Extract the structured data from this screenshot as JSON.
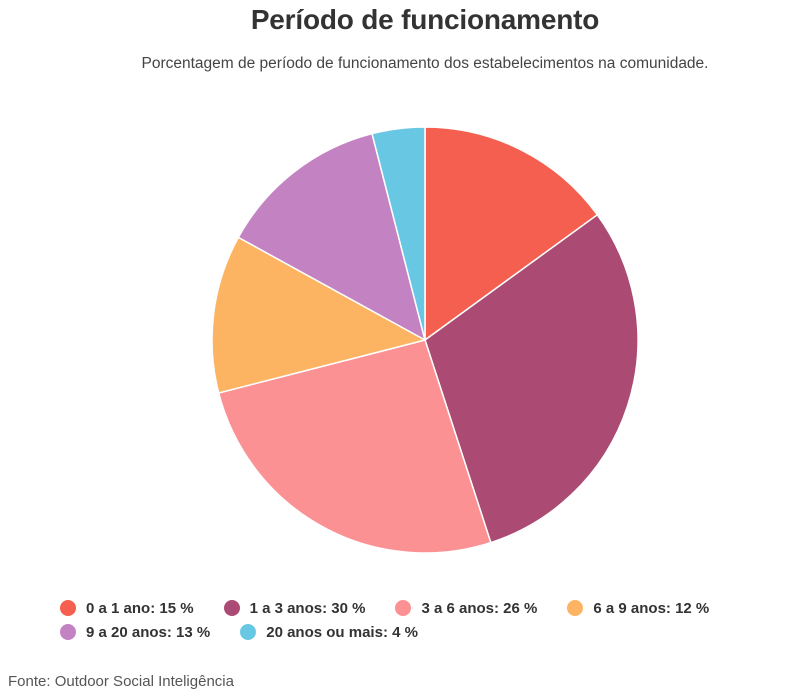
{
  "chart_data": {
    "type": "pie",
    "title": "Período de funcionamento",
    "subtitle": "Porcentagem de período de funcionamento dos estabelecimentos na comunidade.",
    "unit": "%",
    "legend_position": "bottom",
    "slices": [
      {
        "label": "0 a 1 ano",
        "value": 15,
        "legend": "0 a 1 ano: 15 %",
        "color": "#f45f4f"
      },
      {
        "label": "1 a 3 anos",
        "value": 30,
        "legend": "1 a 3 anos: 30 %",
        "color": "#ab4b73"
      },
      {
        "label": "3 a 6 anos",
        "value": 26,
        "legend": "3 a 6 anos: 26 %",
        "color": "#fb9193"
      },
      {
        "label": "6 a 9 anos",
        "value": 12,
        "legend": "6 a 9 anos: 12 %",
        "color": "#fdb462"
      },
      {
        "label": "9 a 20 anos",
        "value": 13,
        "legend": "9 a 20 anos: 13 %",
        "color": "#c383c2"
      },
      {
        "label": "20 anos ou mais",
        "value": 4,
        "legend": "20 anos ou mais: 4 %",
        "color": "#68c8e3"
      }
    ]
  },
  "source": "Fonte: Outdoor Social Inteligência"
}
